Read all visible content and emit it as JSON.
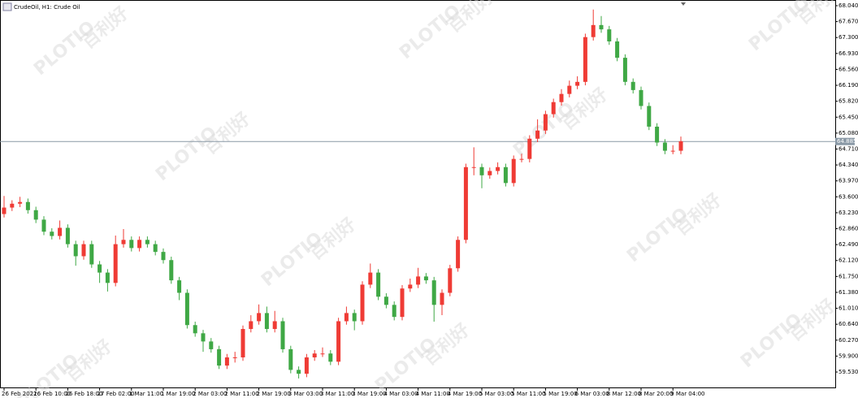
{
  "chart_data": {
    "type": "candlestick",
    "title": "CrudeOil, H1:  Crude Oil",
    "watermark": {
      "brand": "PLOTIO",
      "chinese": "百利好"
    },
    "up_color": "#ef3b35",
    "down_color": "#3fa845",
    "categories": [
      "26 Feb 2021",
      null,
      null,
      null,
      "26 Feb 10:00",
      null,
      null,
      null,
      "26 Feb 18:00",
      null,
      null,
      null,
      "27 Feb 02:00",
      null,
      null,
      null,
      "1 Mar 11:00",
      null,
      null,
      null,
      "1 Mar 19:00",
      null,
      null,
      null,
      "2 Mar 03:00",
      null,
      null,
      null,
      "2 Mar 11:00",
      null,
      null,
      null,
      "2 Mar 19:00",
      null,
      null,
      null,
      "3 Mar 03:00",
      null,
      null,
      null,
      "3 Mar 11:00",
      null,
      null,
      null,
      "3 Mar 19:00",
      null,
      null,
      null,
      "4 Mar 03:00",
      null,
      null,
      null,
      "4 Mar 11:00",
      null,
      null,
      null,
      "4 Mar 19:00",
      null,
      null,
      null,
      "5 Mar 03:00",
      null,
      null,
      null,
      "5 Mar 11:00",
      null,
      null,
      null,
      "5 Mar 19:00",
      null,
      null,
      null,
      "6 Mar 03:00",
      null,
      null,
      null,
      "8 Mar 12:00",
      null,
      null,
      null,
      "8 Mar 20:00",
      null,
      null,
      null,
      "9 Mar 04:00",
      null
    ],
    "open": [
      63.2,
      63.35,
      63.44,
      63.48,
      63.29,
      63.07,
      62.79,
      62.69,
      62.88,
      62.5,
      62.22,
      62.5,
      62.03,
      61.84,
      61.6,
      62.5,
      62.6,
      62.41,
      62.6,
      62.5,
      62.32,
      62.13,
      61.66,
      61.37,
      60.62,
      60.43,
      60.24,
      60.06,
      59.68,
      59.87,
      59.87,
      60.53,
      60.71,
      60.9,
      60.53,
      60.71,
      60.06,
      59.58,
      59.49,
      59.87,
      59.96,
      59.96,
      59.77,
      60.71,
      60.9,
      60.71,
      61.56,
      61.84,
      61.28,
      61.09,
      60.81,
      61.47,
      61.56,
      61.75,
      61.66,
      61.09,
      61.37,
      61.94,
      62.6,
      64.29,
      64.29,
      64.1,
      64.2,
      64.29,
      63.92,
      64.48,
      64.48,
      64.95,
      65.14,
      65.52,
      65.8,
      65.99,
      66.18,
      66.27,
      67.31,
      67.59,
      67.49,
      67.21,
      66.83,
      66.27,
      66.08,
      65.71,
      65.23,
      64.86,
      64.67,
      64.67
    ],
    "high": [
      63.62,
      63.52,
      63.6,
      63.56,
      63.37,
      63.15,
      62.87,
      63.05,
      62.96,
      62.58,
      62.58,
      62.58,
      62.11,
      61.92,
      62.7,
      62.85,
      62.68,
      62.68,
      62.68,
      62.58,
      62.4,
      62.21,
      61.74,
      61.45,
      60.7,
      60.51,
      60.32,
      60.14,
      59.95,
      60.0,
      60.61,
      60.85,
      61.1,
      61.05,
      60.95,
      60.79,
      60.14,
      59.66,
      59.95,
      60.04,
      60.1,
      60.04,
      60.79,
      61.05,
      60.98,
      61.64,
      62.05,
      61.92,
      61.36,
      61.17,
      61.55,
      61.7,
      61.95,
      61.83,
      61.74,
      61.45,
      62.02,
      62.68,
      64.37,
      64.75,
      64.37,
      64.28,
      64.4,
      64.37,
      64.56,
      64.6,
      65.03,
      65.4,
      65.6,
      65.88,
      66.1,
      66.3,
      66.4,
      67.39,
      67.95,
      67.8,
      67.57,
      67.29,
      66.91,
      66.35,
      66.16,
      65.79,
      65.31,
      64.94,
      64.8,
      65.0
    ],
    "low": [
      63.12,
      63.27,
      63.36,
      63.21,
      62.99,
      62.71,
      62.61,
      62.61,
      62.42,
      62.0,
      62.14,
      61.95,
      61.6,
      61.4,
      61.52,
      62.42,
      62.33,
      62.33,
      62.42,
      62.24,
      62.05,
      61.58,
      61.2,
      60.54,
      60.35,
      60.0,
      59.98,
      59.6,
      59.6,
      59.75,
      59.79,
      60.45,
      60.63,
      60.45,
      60.45,
      59.98,
      59.5,
      59.38,
      59.41,
      59.79,
      59.88,
      59.69,
      59.69,
      60.63,
      60.5,
      60.63,
      61.48,
      61.2,
      61.01,
      60.73,
      60.73,
      61.39,
      61.48,
      61.58,
      60.7,
      60.85,
      61.29,
      61.86,
      62.52,
      64.1,
      63.8,
      64.02,
      64.12,
      63.84,
      63.84,
      64.4,
      64.4,
      64.87,
      65.06,
      65.44,
      65.72,
      65.91,
      66.1,
      66.19,
      67.23,
      67.41,
      67.13,
      66.75,
      66.19,
      66.0,
      65.63,
      65.15,
      64.78,
      64.59,
      64.59,
      64.59
    ],
    "close": [
      63.35,
      63.44,
      63.48,
      63.29,
      63.07,
      62.79,
      62.69,
      62.88,
      62.5,
      62.22,
      62.5,
      62.03,
      61.84,
      61.6,
      62.5,
      62.6,
      62.41,
      62.6,
      62.5,
      62.32,
      62.13,
      61.66,
      61.37,
      60.62,
      60.43,
      60.24,
      60.06,
      59.68,
      59.87,
      59.87,
      60.53,
      60.71,
      60.9,
      60.53,
      60.71,
      60.06,
      59.58,
      59.49,
      59.87,
      59.96,
      59.96,
      59.77,
      60.71,
      60.9,
      60.71,
      61.56,
      61.84,
      61.28,
      61.09,
      60.81,
      61.47,
      61.56,
      61.75,
      61.66,
      61.09,
      61.37,
      61.94,
      62.6,
      64.29,
      64.29,
      64.1,
      64.2,
      64.29,
      63.92,
      64.48,
      64.48,
      64.95,
      65.14,
      65.52,
      65.8,
      65.99,
      66.18,
      66.27,
      67.31,
      67.59,
      67.49,
      67.21,
      66.83,
      66.27,
      66.08,
      65.71,
      65.23,
      64.86,
      64.67,
      64.67,
      64.89
    ],
    "current_price": {
      "value": 64.885,
      "label": "64.885"
    },
    "ylim": [
      59.153,
      68.153
    ],
    "yticks": [
      {
        "value": 68.04,
        "label": "68.040"
      },
      {
        "value": 67.67,
        "label": "67.670"
      },
      {
        "value": 67.3,
        "label": "67.300"
      },
      {
        "value": 66.93,
        "label": "66.930"
      },
      {
        "value": 66.56,
        "label": "66.560"
      },
      {
        "value": 66.19,
        "label": "66.190"
      },
      {
        "value": 65.82,
        "label": "65.820"
      },
      {
        "value": 65.45,
        "label": "65.450"
      },
      {
        "value": 65.08,
        "label": "65.080"
      },
      {
        "value": 64.71,
        "label": "64.710"
      },
      {
        "value": 64.34,
        "label": "64.340"
      },
      {
        "value": 63.97,
        "label": "63.970"
      },
      {
        "value": 63.6,
        "label": "63.600"
      },
      {
        "value": 63.23,
        "label": "63.230"
      },
      {
        "value": 62.86,
        "label": "62.860"
      },
      {
        "value": 62.49,
        "label": "62.490"
      },
      {
        "value": 62.12,
        "label": "62.120"
      },
      {
        "value": 61.75,
        "label": "61.750"
      },
      {
        "value": 61.38,
        "label": "61.380"
      },
      {
        "value": 61.01,
        "label": "61.010"
      },
      {
        "value": 60.64,
        "label": "60.640"
      },
      {
        "value": 60.27,
        "label": "60.270"
      },
      {
        "value": 59.9,
        "label": "59.900"
      },
      {
        "value": 59.53,
        "label": "59.530"
      }
    ]
  }
}
